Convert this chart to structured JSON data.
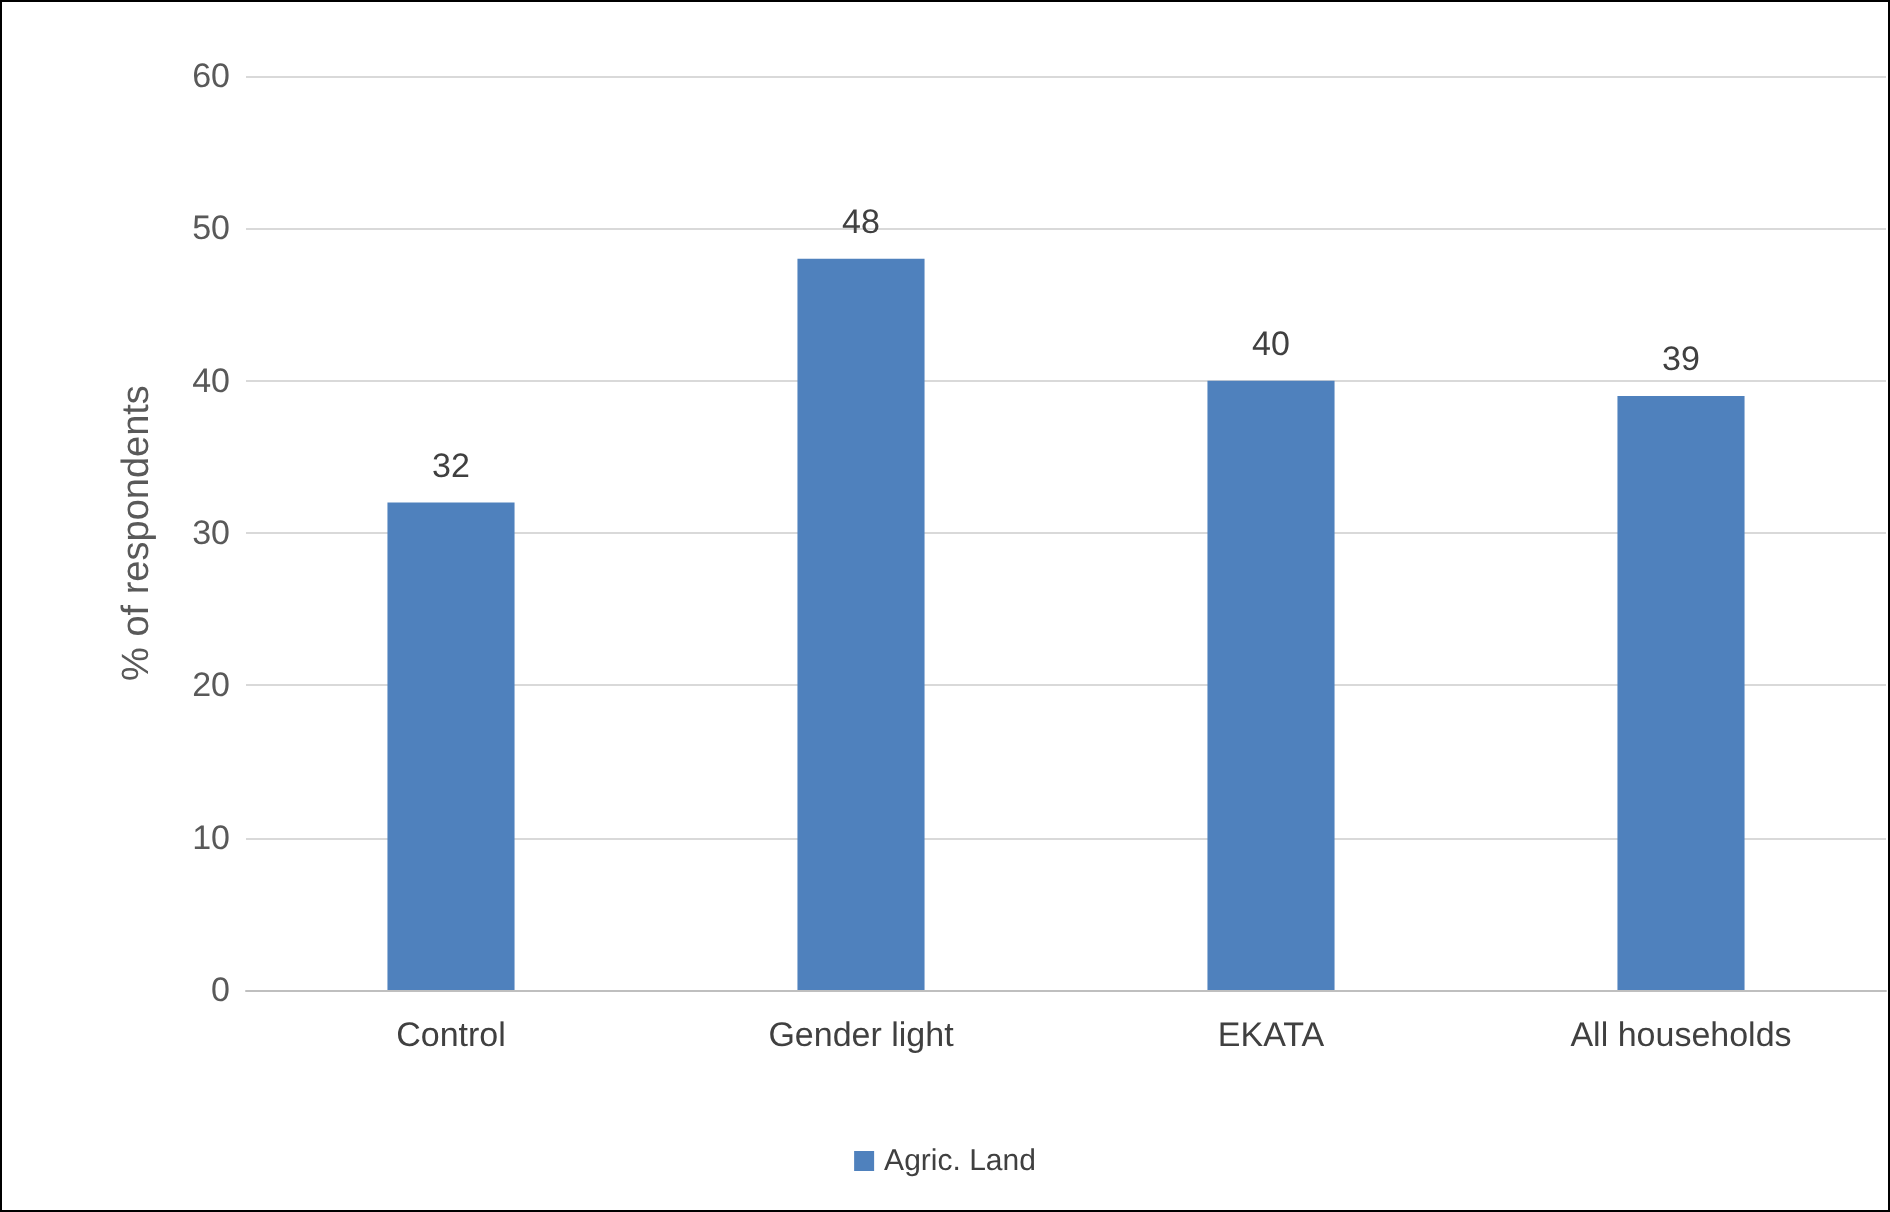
{
  "chart_data": {
    "type": "bar",
    "ylabel": "% of respondents",
    "categories": [
      "Control",
      "Gender light",
      "EKATA",
      "All households"
    ],
    "series": [
      {
        "name": "Agric. Land",
        "color": "#4f81bd",
        "values": [
          32,
          48,
          40,
          39
        ]
      }
    ],
    "ylim": [
      0,
      60
    ],
    "yticks": [
      0,
      10,
      20,
      30,
      40,
      50,
      60
    ],
    "grid": "y",
    "legend": "bottom",
    "data_labels": true
  }
}
